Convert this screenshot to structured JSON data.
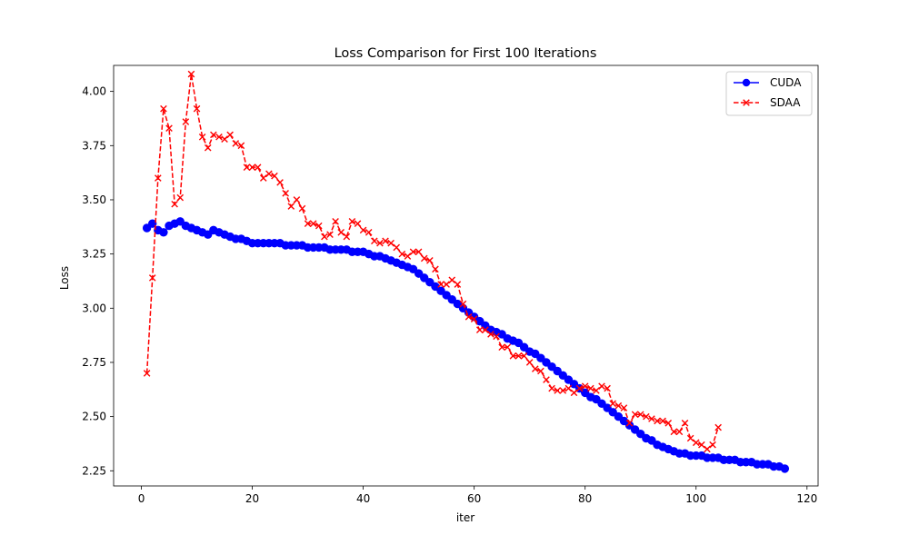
{
  "chart_data": {
    "type": "line",
    "title": "Loss Comparison for First 100 Iterations",
    "xlabel": "iter",
    "ylabel": "Loss",
    "xlim": [
      -5,
      122
    ],
    "ylim": [
      2.18,
      4.12
    ],
    "xticks": [
      0,
      20,
      40,
      60,
      80,
      100,
      120
    ],
    "xtick_labels": [
      "0",
      "20",
      "40",
      "60",
      "80",
      "100",
      "120"
    ],
    "yticks": [
      2.25,
      2.5,
      2.75,
      3.0,
      3.25,
      3.5,
      3.75,
      4.0
    ],
    "ytick_labels": [
      "2.25",
      "2.50",
      "2.75",
      "3.00",
      "3.25",
      "3.50",
      "3.75",
      "4.00"
    ],
    "grid": false,
    "legend_position": "top-right",
    "series": [
      {
        "name": "CUDA",
        "color": "#0000ff",
        "marker": "circle",
        "linestyle": "solid",
        "x": [
          1,
          2,
          3,
          4,
          5,
          6,
          7,
          8,
          9,
          10,
          11,
          12,
          13,
          14,
          15,
          16,
          17,
          18,
          19,
          20,
          21,
          22,
          23,
          24,
          25,
          26,
          27,
          28,
          29,
          30,
          31,
          32,
          33,
          34,
          35,
          36,
          37,
          38,
          39,
          40,
          41,
          42,
          43,
          44,
          45,
          46,
          47,
          48,
          49,
          50,
          51,
          52,
          53,
          54,
          55,
          56,
          57,
          58,
          59,
          60,
          61,
          62,
          63,
          64,
          65,
          66,
          67,
          68,
          69,
          70,
          71,
          72,
          73,
          74,
          75,
          76,
          77,
          78,
          79,
          80,
          81,
          82,
          83,
          84,
          85,
          86,
          87,
          88,
          89,
          90,
          91,
          92,
          93,
          94,
          95,
          96,
          97,
          98,
          99,
          100,
          101,
          102,
          103,
          104,
          105,
          106,
          107,
          108,
          109,
          110,
          111,
          112,
          113,
          114,
          115,
          116
        ],
        "y": [
          3.37,
          3.39,
          3.36,
          3.35,
          3.38,
          3.39,
          3.4,
          3.38,
          3.37,
          3.36,
          3.35,
          3.34,
          3.36,
          3.35,
          3.34,
          3.33,
          3.32,
          3.32,
          3.31,
          3.3,
          3.3,
          3.3,
          3.3,
          3.3,
          3.3,
          3.29,
          3.29,
          3.29,
          3.29,
          3.28,
          3.28,
          3.28,
          3.28,
          3.27,
          3.27,
          3.27,
          3.27,
          3.26,
          3.26,
          3.26,
          3.25,
          3.24,
          3.24,
          3.23,
          3.22,
          3.21,
          3.2,
          3.19,
          3.18,
          3.16,
          3.14,
          3.12,
          3.1,
          3.08,
          3.06,
          3.04,
          3.02,
          3.0,
          2.98,
          2.96,
          2.94,
          2.92,
          2.9,
          2.89,
          2.88,
          2.86,
          2.85,
          2.84,
          2.82,
          2.8,
          2.79,
          2.77,
          2.75,
          2.73,
          2.71,
          2.69,
          2.67,
          2.65,
          2.63,
          2.61,
          2.59,
          2.58,
          2.56,
          2.54,
          2.52,
          2.5,
          2.48,
          2.46,
          2.44,
          2.42,
          2.4,
          2.39,
          2.37,
          2.36,
          2.35,
          2.34,
          2.33,
          2.33,
          2.32,
          2.32,
          2.32,
          2.31,
          2.31,
          2.31,
          2.3,
          2.3,
          2.3,
          2.29,
          2.29,
          2.29,
          2.28,
          2.28,
          2.28,
          2.27,
          2.27,
          2.26
        ]
      },
      {
        "name": "SDAA",
        "color": "#ff0000",
        "marker": "x",
        "linestyle": "dashed",
        "x": [
          1,
          2,
          3,
          4,
          5,
          6,
          7,
          8,
          9,
          10,
          11,
          12,
          13,
          14,
          15,
          16,
          17,
          18,
          19,
          20,
          21,
          22,
          23,
          24,
          25,
          26,
          27,
          28,
          29,
          30,
          31,
          32,
          33,
          34,
          35,
          36,
          37,
          38,
          39,
          40,
          41,
          42,
          43,
          44,
          45,
          46,
          47,
          48,
          49,
          50,
          51,
          52,
          53,
          54,
          55,
          56,
          57,
          58,
          59,
          60,
          61,
          62,
          63,
          64,
          65,
          66,
          67,
          68,
          69,
          70,
          71,
          72,
          73,
          74,
          75,
          76,
          77,
          78,
          79,
          80,
          81,
          82,
          83,
          84,
          85,
          86,
          87,
          88,
          89,
          90,
          91,
          92,
          93,
          94,
          95,
          96,
          97,
          98,
          99,
          100,
          101,
          102,
          103,
          104
        ],
        "y": [
          2.7,
          3.14,
          3.6,
          3.92,
          3.83,
          3.48,
          3.51,
          3.86,
          4.08,
          3.92,
          3.79,
          3.74,
          3.8,
          3.79,
          3.78,
          3.8,
          3.76,
          3.75,
          3.65,
          3.65,
          3.65,
          3.6,
          3.62,
          3.61,
          3.58,
          3.53,
          3.47,
          3.5,
          3.46,
          3.39,
          3.39,
          3.38,
          3.33,
          3.34,
          3.4,
          3.35,
          3.33,
          3.4,
          3.39,
          3.36,
          3.35,
          3.31,
          3.3,
          3.31,
          3.3,
          3.28,
          3.25,
          3.24,
          3.26,
          3.26,
          3.23,
          3.22,
          3.18,
          3.11,
          3.11,
          3.13,
          3.11,
          3.02,
          2.96,
          2.95,
          2.9,
          2.9,
          2.88,
          2.87,
          2.82,
          2.82,
          2.78,
          2.78,
          2.78,
          2.75,
          2.72,
          2.71,
          2.67,
          2.63,
          2.62,
          2.62,
          2.63,
          2.61,
          2.63,
          2.64,
          2.63,
          2.62,
          2.64,
          2.63,
          2.56,
          2.55,
          2.54,
          2.47,
          2.51,
          2.51,
          2.5,
          2.49,
          2.48,
          2.48,
          2.47,
          2.43,
          2.43,
          2.47,
          2.4,
          2.38,
          2.37,
          2.35,
          2.37,
          2.45
        ]
      }
    ]
  }
}
